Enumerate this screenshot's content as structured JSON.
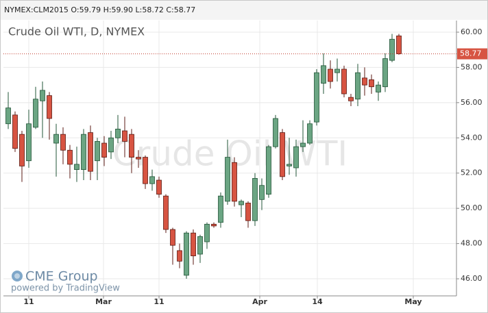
{
  "header": "NYMEX:CLM2015 O:59.79 H:59.90 L:58.72 C:58.77",
  "chart_data": {
    "type": "candlestick",
    "title": "Crude Oil WTI, D, NYMEX",
    "watermark": "Crude Oil WTI",
    "up_color": "#6ba583",
    "down_color": "#d75442",
    "up_border": "#225437",
    "down_border": "#5b1a13",
    "open": [
      54.8,
      55.3,
      54.2,
      52.7,
      54.6,
      56.1,
      56.4,
      53.7,
      54.2,
      53.3,
      52.2,
      52.2,
      54.3,
      52.7,
      53.7,
      53.2,
      54.0,
      54.4,
      54.2,
      52.9,
      52.9,
      51.4,
      51.6,
      50.7,
      48.8,
      47.6,
      46.2,
      48.6,
      47.4,
      48.1,
      49.1,
      49.2,
      50.4,
      52.6,
      50.2,
      50.3,
      49.3,
      50.5,
      50.8,
      53.5,
      54.3,
      52.4,
      52.3,
      53.5,
      53.7,
      54.9,
      57.1,
      57.9,
      57.7,
      57.9,
      56.3,
      56.2,
      57.4,
      57.3,
      56.6,
      56.9,
      58.4,
      59.79
    ],
    "high": [
      56.6,
      55.5,
      54.4,
      55.6,
      56.9,
      57.2,
      56.6,
      54.8,
      54.6,
      53.6,
      53.5,
      54.5,
      54.7,
      54.0,
      54.1,
      54.4,
      55.3,
      55.2,
      54.5,
      53.3,
      53.0,
      52.2,
      51.8,
      50.8,
      48.9,
      48.0,
      48.7,
      48.8,
      48.5,
      49.2,
      49.2,
      50.9,
      53.9,
      52.9,
      50.5,
      50.4,
      52.0,
      51.7,
      53.6,
      55.3,
      54.5,
      54.0,
      53.9,
      55.0,
      55.0,
      57.9,
      58.8,
      58.4,
      58.5,
      58.1,
      56.5,
      58.2,
      58.0,
      57.6,
      57.2,
      58.8,
      59.9,
      59.9
    ],
    "low": [
      54.5,
      53.2,
      51.5,
      52.3,
      54.5,
      54.0,
      53.9,
      51.8,
      52.5,
      51.7,
      51.5,
      51.6,
      51.6,
      51.6,
      52.4,
      52.8,
      53.7,
      52.9,
      52.0,
      52.3,
      51.1,
      51.0,
      50.6,
      48.6,
      46.8,
      46.6,
      46.0,
      46.8,
      46.9,
      47.7,
      48.9,
      48.9,
      50.2,
      50.1,
      49.5,
      48.9,
      49.0,
      49.9,
      50.6,
      53.4,
      51.6,
      51.9,
      51.8,
      53.2,
      53.6,
      54.7,
      56.5,
      56.8,
      57.2,
      56.3,
      55.8,
      55.8,
      56.4,
      56.5,
      56.1,
      56.6,
      58.3,
      58.72
    ],
    "close": [
      55.7,
      53.4,
      52.4,
      54.8,
      56.2,
      56.7,
      55.1,
      54.2,
      53.3,
      52.5,
      52.5,
      54.2,
      52.1,
      53.8,
      52.9,
      54.0,
      54.5,
      53.8,
      52.9,
      52.8,
      51.4,
      51.8,
      50.8,
      48.8,
      47.9,
      47.0,
      48.6,
      47.3,
      48.4,
      49.1,
      49.0,
      50.7,
      52.9,
      50.4,
      50.4,
      49.3,
      51.7,
      51.3,
      53.5,
      55.1,
      51.8,
      52.5,
      53.5,
      53.7,
      54.8,
      57.7,
      58.1,
      57.2,
      57.9,
      56.5,
      56.1,
      57.7,
      57.0,
      56.9,
      57.0,
      58.5,
      59.6,
      58.77
    ],
    "last_price": 58.77,
    "xlim": [
      -0.7,
      65.4
    ],
    "xticks": [
      {
        "value": 3,
        "label": "11"
      },
      {
        "value": 13.9,
        "label": "Mar"
      },
      {
        "value": 22,
        "label": "11"
      },
      {
        "value": 36.7,
        "label": "Apr"
      },
      {
        "value": 45.1,
        "label": "14"
      },
      {
        "value": 59.1,
        "label": "May"
      }
    ],
    "ylim": [
      45.03,
      60.66
    ],
    "yticks": [
      {
        "value": 46,
        "label": "46.00"
      },
      {
        "value": 48,
        "label": "48.00"
      },
      {
        "value": 50,
        "label": "50.00"
      },
      {
        "value": 52,
        "label": "52.00"
      },
      {
        "value": 54,
        "label": "54.00"
      },
      {
        "value": 56,
        "label": "56.00"
      },
      {
        "value": 58,
        "label": "58.00"
      },
      {
        "value": 60,
        "label": "60.00"
      }
    ],
    "grid": true
  },
  "logo": {
    "brand": "CME Group",
    "powered": "powered by TradingView"
  }
}
